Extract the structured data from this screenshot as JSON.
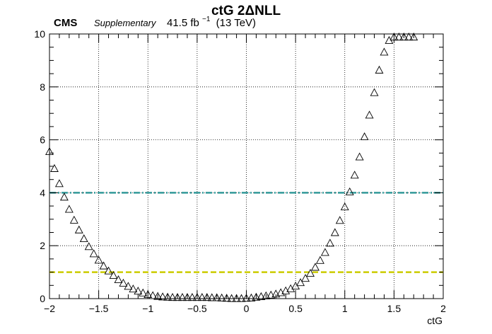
{
  "header": {
    "experiment": "CMS",
    "status": "Supplementary",
    "lumi_value": "41.5 fb",
    "lumi_exponent": "−1",
    "energy": "(13 TeV)"
  },
  "chart_data": {
    "type": "scatter",
    "title": "ctG 2ΔNLL",
    "xlabel": "ctG",
    "ylabel": "",
    "xlim": [
      -2,
      2
    ],
    "ylim": [
      0,
      10
    ],
    "x_ticks": [
      "−2",
      "−1.5",
      "−1",
      "−0.5",
      "0",
      "0.5",
      "1",
      "1.5",
      "2"
    ],
    "y_ticks": [
      "0",
      "2",
      "4",
      "6",
      "8",
      "10"
    ],
    "grid": true,
    "marker": "open-triangle",
    "scan_points": {
      "x": [
        -2.0,
        -1.95,
        -1.9,
        -1.85,
        -1.8,
        -1.75,
        -1.7,
        -1.65,
        -1.6,
        -1.55,
        -1.5,
        -1.45,
        -1.4,
        -1.35,
        -1.3,
        -1.25,
        -1.2,
        -1.15,
        -1.1,
        -1.05,
        -1.0,
        -0.95,
        -0.9,
        -0.85,
        -0.8,
        -0.75,
        -0.7,
        -0.65,
        -0.6,
        -0.55,
        -0.5,
        -0.45,
        -0.4,
        -0.35,
        -0.3,
        -0.25,
        -0.2,
        -0.15,
        -0.1,
        -0.05,
        0.0,
        0.05,
        0.1,
        0.15,
        0.2,
        0.25,
        0.3,
        0.35,
        0.4,
        0.45,
        0.5,
        0.55,
        0.6,
        0.65,
        0.7,
        0.75,
        0.8,
        0.85,
        0.9,
        0.95,
        1.0,
        1.05,
        1.1,
        1.15,
        1.2,
        1.25,
        1.3,
        1.35,
        1.4,
        1.45,
        1.5,
        1.55,
        1.6,
        1.65,
        1.7
      ],
      "y": [
        5.55,
        4.91,
        4.34,
        3.83,
        3.37,
        2.96,
        2.59,
        2.26,
        1.96,
        1.69,
        1.45,
        1.23,
        1.04,
        0.87,
        0.71,
        0.58,
        0.46,
        0.36,
        0.28,
        0.21,
        0.15,
        0.11,
        0.08,
        0.06,
        0.05,
        0.04,
        0.04,
        0.04,
        0.04,
        0.04,
        0.04,
        0.04,
        0.04,
        0.03,
        0.03,
        0.02,
        0.01,
        0.0,
        0.0,
        0.0,
        0.01,
        0.02,
        0.05,
        0.07,
        0.1,
        0.13,
        0.17,
        0.22,
        0.29,
        0.37,
        0.47,
        0.6,
        0.76,
        0.95,
        1.18,
        1.44,
        1.74,
        2.09,
        2.49,
        2.95,
        3.46,
        4.03,
        4.66,
        5.35,
        6.11,
        6.93,
        7.78,
        8.63,
        9.31,
        9.75,
        9.88,
        9.88,
        9.88,
        9.88,
        9.88
      ]
    },
    "reference_lines": [
      {
        "y": 1,
        "color": "#cccc00",
        "style": "dashed"
      },
      {
        "y": 4,
        "color": "#339999",
        "style": "dash-dot"
      }
    ]
  }
}
